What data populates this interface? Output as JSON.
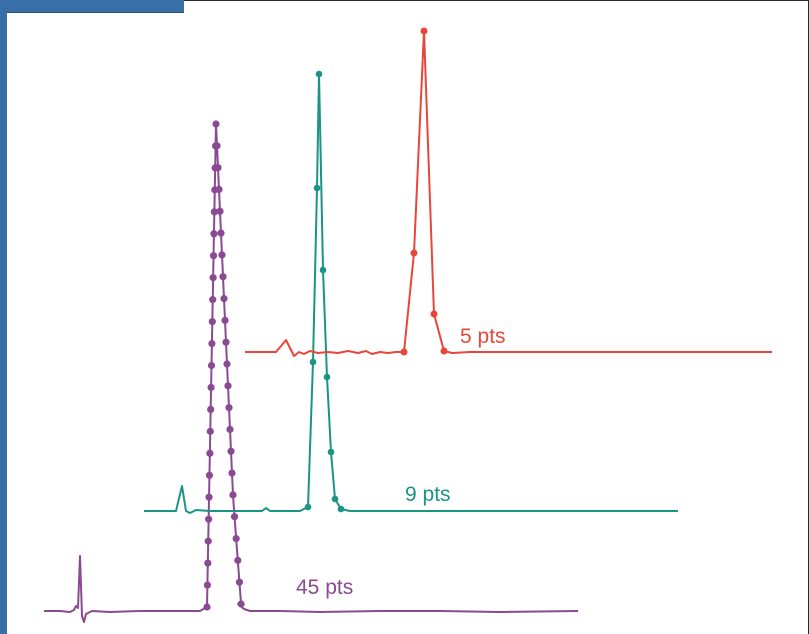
{
  "chart_data": {
    "type": "line",
    "title": "",
    "xlabel": "",
    "ylabel": "",
    "series": [
      {
        "name": "5 pts",
        "color": "#e8463a",
        "points": [
          [
            404,
            352
          ],
          [
            414,
            253
          ],
          [
            424,
            31
          ],
          [
            434,
            314
          ],
          [
            444,
            351
          ]
        ]
      },
      {
        "name": "9 pts",
        "color": "#1a9485",
        "points": [
          [
            308,
            507
          ],
          [
            313,
            362
          ],
          [
            317,
            188
          ],
          [
            319,
            74
          ],
          [
            323,
            270
          ],
          [
            327,
            377
          ],
          [
            331,
            452
          ],
          [
            335,
            499
          ],
          [
            341,
            509
          ]
        ]
      },
      {
        "name": "45 pts",
        "color": "#8a4a92",
        "points": []
      }
    ]
  }
}
